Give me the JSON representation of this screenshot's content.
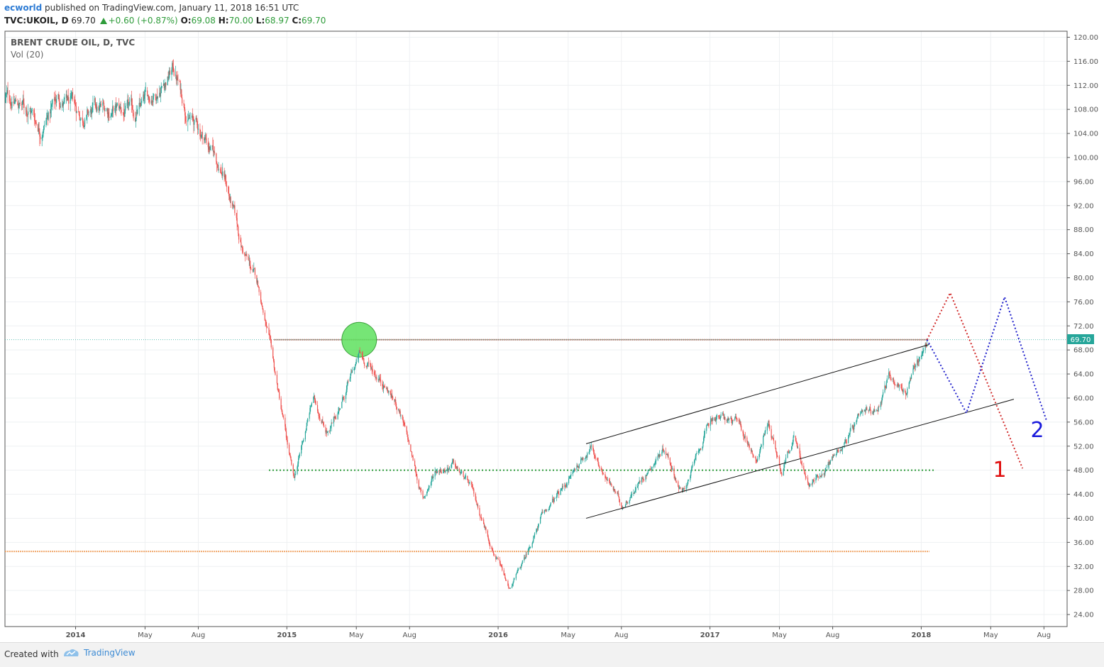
{
  "header": {
    "author": "ecworld",
    "published": "published on TradingView.com, January 11, 2018 16:51 UTC",
    "symbol": "TVC:UKOIL, D",
    "last": "69.70",
    "change": "+0.60 (+0.87%)",
    "open_label": "O:",
    "open": "69.08",
    "high_label": "H:",
    "high": "70.00",
    "low_label": "L:",
    "low": "68.97",
    "close_label": "C:",
    "close": "69.70"
  },
  "legend": {
    "title": "BRENT CRUDE OIL, D, TVC",
    "indicator": "Vol (20)"
  },
  "price_tag": "69.70",
  "wave_labels": [
    "1",
    "2"
  ],
  "colors": {
    "up": "#26a69a",
    "down": "#ef5350",
    "resistance": "#b5786b",
    "support": "#2e9c3a",
    "support_low": "#f0a76b",
    "path1": "#d12a2a",
    "path2": "#2222cc",
    "highlight": "#5ee05e"
  },
  "chart_data": {
    "type": "candlestick",
    "title": "BRENT CRUDE OIL, D, TVC",
    "xlabel": "",
    "ylabel": "",
    "ylim": [
      22,
      121
    ],
    "xlim": [
      "2013-09-01",
      "2018-09-10"
    ],
    "y_ticks": [
      "24.00",
      "28.00",
      "32.00",
      "36.00",
      "40.00",
      "44.00",
      "48.00",
      "52.00",
      "56.00",
      "60.00",
      "64.00",
      "68.00",
      "72.00",
      "76.00",
      "80.00",
      "84.00",
      "88.00",
      "92.00",
      "96.00",
      "100.00",
      "104.00",
      "108.00",
      "112.00",
      "116.00",
      "120.00"
    ],
    "x_ticks": [
      {
        "label": "2014",
        "date": "2014-01-01",
        "bold": true
      },
      {
        "label": "May",
        "date": "2014-05-01"
      },
      {
        "label": "Aug",
        "date": "2014-08-01"
      },
      {
        "label": "2015",
        "date": "2015-01-01",
        "bold": true
      },
      {
        "label": "May",
        "date": "2015-05-01"
      },
      {
        "label": "Aug",
        "date": "2015-08-01"
      },
      {
        "label": "2016",
        "date": "2016-01-01",
        "bold": true
      },
      {
        "label": "May",
        "date": "2016-05-01"
      },
      {
        "label": "Aug",
        "date": "2016-08-01"
      },
      {
        "label": "2017",
        "date": "2017-01-01",
        "bold": true
      },
      {
        "label": "May",
        "date": "2017-05-01"
      },
      {
        "label": "Aug",
        "date": "2017-08-01"
      },
      {
        "label": "2018",
        "date": "2018-01-01",
        "bold": true
      },
      {
        "label": "May",
        "date": "2018-05-01"
      },
      {
        "label": "Aug",
        "date": "2018-08-01"
      }
    ],
    "price_path": [
      [
        "2013-09-01",
        110
      ],
      [
        "2013-10-15",
        108
      ],
      [
        "2013-11-01",
        105
      ],
      [
        "2013-12-01",
        110
      ],
      [
        "2014-01-10",
        107
      ],
      [
        "2014-03-01",
        108
      ],
      [
        "2014-04-15",
        107
      ],
      [
        "2014-06-19",
        115
      ],
      [
        "2014-07-15",
        107
      ],
      [
        "2014-08-15",
        103
      ],
      [
        "2014-09-15",
        97
      ],
      [
        "2014-10-15",
        85
      ],
      [
        "2014-11-15",
        78
      ],
      [
        "2014-12-15",
        62
      ],
      [
        "2015-01-13",
        46
      ],
      [
        "2015-02-15",
        60
      ],
      [
        "2015-03-15",
        54
      ],
      [
        "2015-05-06",
        67
      ],
      [
        "2015-06-15",
        63
      ],
      [
        "2015-07-15",
        58
      ],
      [
        "2015-08-24",
        43
      ],
      [
        "2015-09-15",
        48
      ],
      [
        "2015-10-15",
        49
      ],
      [
        "2015-11-15",
        45
      ],
      [
        "2015-12-15",
        37
      ],
      [
        "2016-01-20",
        28
      ],
      [
        "2016-02-15",
        33
      ],
      [
        "2016-03-15",
        40
      ],
      [
        "2016-04-15",
        44
      ],
      [
        "2016-06-08",
        52
      ],
      [
        "2016-08-02",
        42
      ],
      [
        "2016-09-15",
        48
      ],
      [
        "2016-10-15",
        52
      ],
      [
        "2016-11-14",
        44
      ],
      [
        "2017-01-06",
        57
      ],
      [
        "2017-02-15",
        56
      ],
      [
        "2017-03-22",
        50
      ],
      [
        "2017-04-12",
        56
      ],
      [
        "2017-05-05",
        48
      ],
      [
        "2017-05-25",
        54
      ],
      [
        "2017-06-21",
        45
      ],
      [
        "2017-07-15",
        48
      ],
      [
        "2017-08-15",
        52
      ],
      [
        "2017-09-15",
        56
      ],
      [
        "2017-10-15",
        58
      ],
      [
        "2017-11-07",
        64
      ],
      [
        "2017-12-06",
        61
      ],
      [
        "2018-01-11",
        69.7
      ]
    ],
    "annotations": [
      {
        "kind": "horizontal-dotted",
        "y": 69.7,
        "from": "2014-12-10",
        "to": "2018-01-11",
        "role": "resistance"
      },
      {
        "kind": "horizontal-dotted",
        "y": 48,
        "from": "2014-12-01",
        "to": "2018-01-25",
        "role": "support"
      },
      {
        "kind": "horizontal-dotted",
        "y": 34.5,
        "from": "2013-09-01",
        "to": "2018-01-15",
        "role": "support-low"
      },
      {
        "kind": "horizontal-dotted",
        "y": 69.7,
        "from": "2013-09-01",
        "to": "2018-09-10",
        "role": "last-price"
      },
      {
        "kind": "trendline",
        "points": [
          [
            "2016-06-01",
            52.4
          ],
          [
            "2018-01-15",
            68.9
          ]
        ]
      },
      {
        "kind": "trendline",
        "points": [
          [
            "2016-06-01",
            40.0
          ],
          [
            "2018-06-10",
            59.8
          ]
        ]
      },
      {
        "kind": "circle",
        "center": [
          "2015-05-06",
          69.7
        ],
        "radius_days": 30
      },
      {
        "kind": "projection",
        "label": "1",
        "points": [
          [
            "2018-01-11",
            69.7
          ],
          [
            "2018-02-20",
            77.5
          ],
          [
            "2018-06-25",
            48.3
          ]
        ]
      },
      {
        "kind": "projection",
        "label": "2",
        "points": [
          [
            "2018-01-11",
            69.7
          ],
          [
            "2018-03-20",
            57.5
          ],
          [
            "2018-05-25",
            76.8
          ],
          [
            "2018-08-05",
            56.4
          ]
        ]
      }
    ]
  },
  "footer": {
    "created_with": "Created with",
    "brand": "TradingView"
  }
}
